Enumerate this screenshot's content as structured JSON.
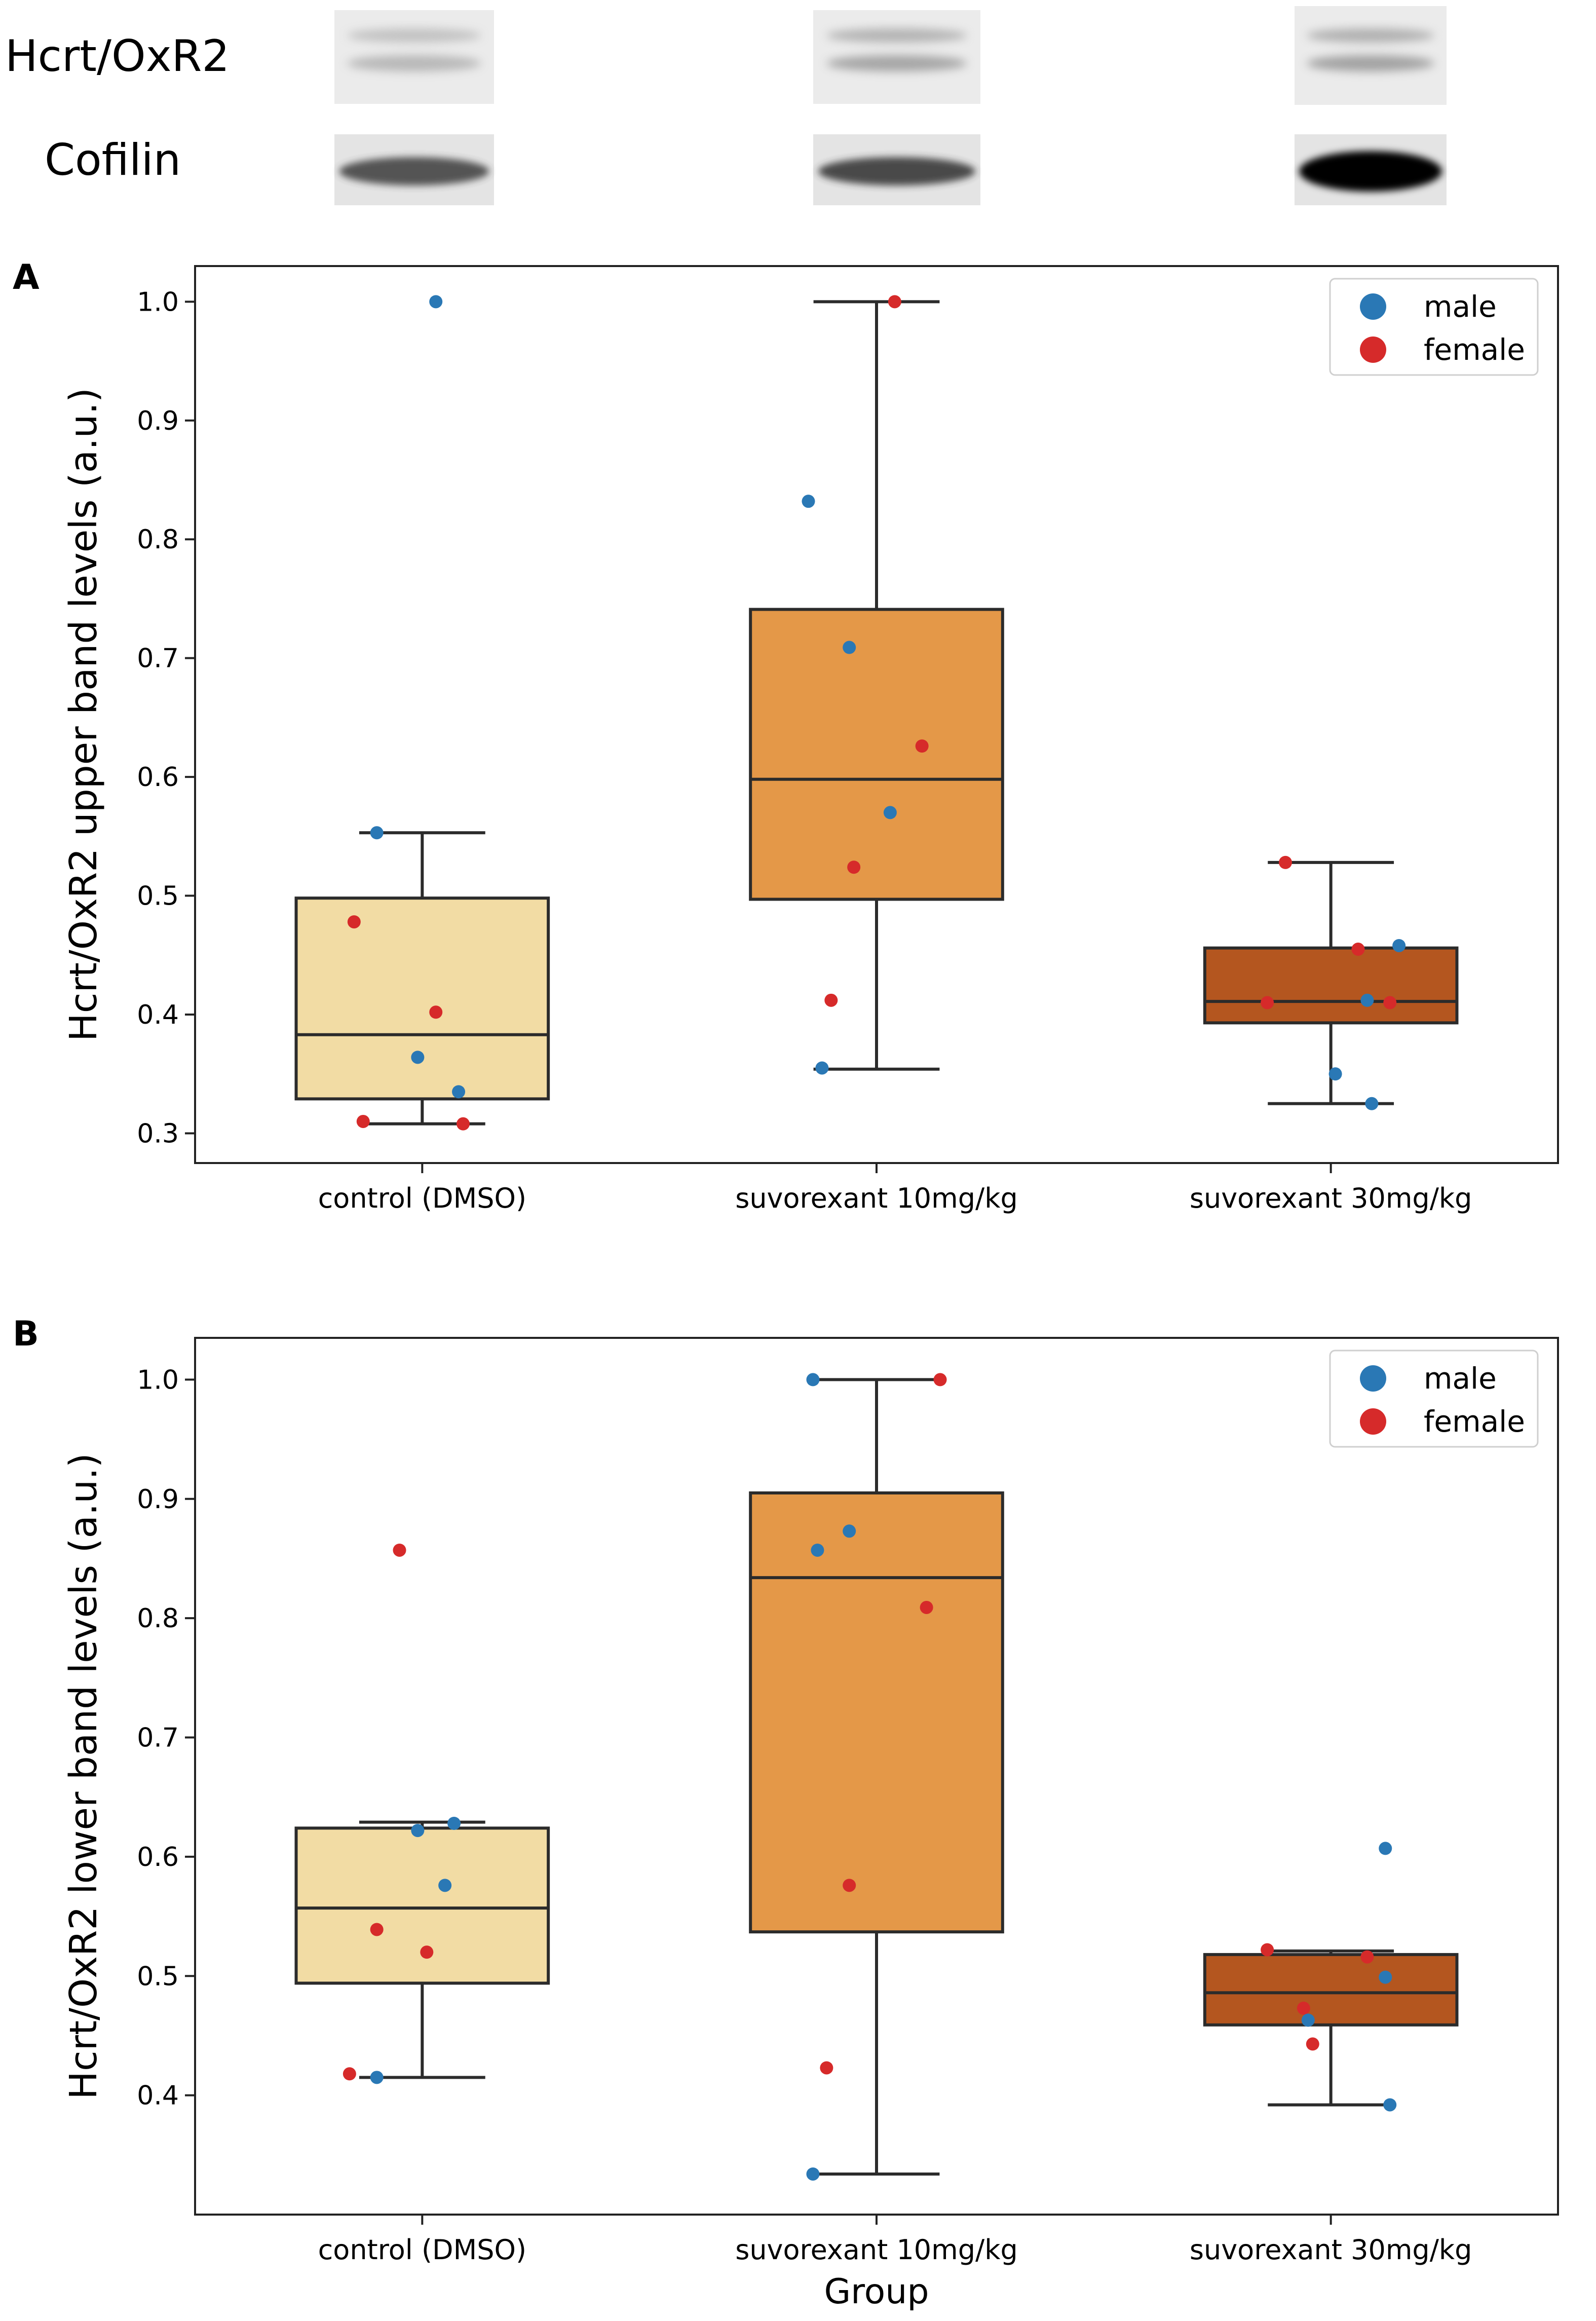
{
  "blot": {
    "labels": {
      "hcrt": "Hcrt/OxR2",
      "cofilin": "Cofilin"
    }
  },
  "colors": {
    "male": "#2a78b5",
    "female": "#d62a2a",
    "box_control": "#f2dca4",
    "box_suvo10": "#e49848",
    "box_suvo30": "#b4561f",
    "line": "#2b2b2b"
  },
  "chart_data": [
    {
      "panel": "A",
      "type": "box",
      "xlabel": "",
      "ylabel": "Hcrt/OxR2 upper band levels (a.u.)",
      "ylim": [
        0.275,
        1.03
      ],
      "yticks": [
        0.3,
        0.4,
        0.5,
        0.6,
        0.7,
        0.8,
        0.9,
        1.0
      ],
      "ytick_labels": [
        "0.3",
        "0.4",
        "0.5",
        "0.6",
        "0.7",
        "0.8",
        "0.9",
        "1.0"
      ],
      "grid": false,
      "legend": {
        "position": "top-right",
        "entries": [
          "male",
          "female"
        ]
      },
      "categories": [
        "control (DMSO)",
        "suvorexant 10mg/kg",
        "suvorexant 30mg/kg"
      ],
      "boxes": [
        {
          "q1": 0.329,
          "median": 0.383,
          "q3": 0.498,
          "whisker_low": 0.308,
          "whisker_high": 0.553
        },
        {
          "q1": 0.497,
          "median": 0.598,
          "q3": 0.741,
          "whisker_low": 0.354,
          "whisker_high": 1.0
        },
        {
          "q1": 0.393,
          "median": 0.411,
          "q3": 0.456,
          "whisker_low": 0.325,
          "whisker_high": 0.528
        }
      ],
      "points": [
        [
          {
            "dx": 0.03,
            "y": 1.0,
            "sex": "male"
          },
          {
            "dx": -0.1,
            "y": 0.553,
            "sex": "male"
          },
          {
            "dx": -0.15,
            "y": 0.478,
            "sex": "female"
          },
          {
            "dx": 0.03,
            "y": 0.402,
            "sex": "female"
          },
          {
            "dx": -0.01,
            "y": 0.364,
            "sex": "male"
          },
          {
            "dx": 0.08,
            "y": 0.335,
            "sex": "male"
          },
          {
            "dx": -0.13,
            "y": 0.31,
            "sex": "female"
          },
          {
            "dx": 0.09,
            "y": 0.308,
            "sex": "female"
          }
        ],
        [
          {
            "dx": 0.04,
            "y": 1.0,
            "sex": "female"
          },
          {
            "dx": -0.15,
            "y": 0.832,
            "sex": "male"
          },
          {
            "dx": -0.06,
            "y": 0.709,
            "sex": "male"
          },
          {
            "dx": 0.1,
            "y": 0.626,
            "sex": "female"
          },
          {
            "dx": 0.03,
            "y": 0.57,
            "sex": "male"
          },
          {
            "dx": -0.05,
            "y": 0.524,
            "sex": "female"
          },
          {
            "dx": -0.1,
            "y": 0.412,
            "sex": "female"
          },
          {
            "dx": -0.12,
            "y": 0.355,
            "sex": "male"
          }
        ],
        [
          {
            "dx": -0.1,
            "y": 0.528,
            "sex": "female"
          },
          {
            "dx": 0.15,
            "y": 0.458,
            "sex": "male"
          },
          {
            "dx": 0.06,
            "y": 0.455,
            "sex": "female"
          },
          {
            "dx": -0.14,
            "y": 0.41,
            "sex": "female"
          },
          {
            "dx": 0.08,
            "y": 0.412,
            "sex": "male"
          },
          {
            "dx": 0.13,
            "y": 0.41,
            "sex": "female"
          },
          {
            "dx": 0.01,
            "y": 0.35,
            "sex": "male"
          },
          {
            "dx": 0.09,
            "y": 0.325,
            "sex": "male"
          }
        ]
      ]
    },
    {
      "panel": "B",
      "type": "box",
      "xlabel": "Group",
      "ylabel": "Hcrt/OxR2 lower band levels (a.u.)",
      "ylim": [
        0.3,
        1.035
      ],
      "yticks": [
        0.4,
        0.5,
        0.6,
        0.7,
        0.8,
        0.9,
        1.0
      ],
      "ytick_labels": [
        "0.4",
        "0.5",
        "0.6",
        "0.7",
        "0.8",
        "0.9",
        "1.0"
      ],
      "grid": false,
      "legend": {
        "position": "top-right",
        "entries": [
          "male",
          "female"
        ]
      },
      "categories": [
        "control (DMSO)",
        "suvorexant 10mg/kg",
        "suvorexant 30mg/kg"
      ],
      "boxes": [
        {
          "q1": 0.494,
          "median": 0.557,
          "q3": 0.624,
          "whisker_low": 0.415,
          "whisker_high": 0.629
        },
        {
          "q1": 0.537,
          "median": 0.834,
          "q3": 0.905,
          "whisker_low": 0.334,
          "whisker_high": 1.0
        },
        {
          "q1": 0.459,
          "median": 0.486,
          "q3": 0.518,
          "whisker_low": 0.392,
          "whisker_high": 0.521
        }
      ],
      "points": [
        [
          {
            "dx": -0.05,
            "y": 0.857,
            "sex": "female"
          },
          {
            "dx": 0.07,
            "y": 0.628,
            "sex": "male"
          },
          {
            "dx": -0.01,
            "y": 0.622,
            "sex": "male"
          },
          {
            "dx": 0.05,
            "y": 0.576,
            "sex": "male"
          },
          {
            "dx": -0.1,
            "y": 0.539,
            "sex": "female"
          },
          {
            "dx": 0.01,
            "y": 0.52,
            "sex": "female"
          },
          {
            "dx": -0.16,
            "y": 0.418,
            "sex": "female"
          },
          {
            "dx": -0.1,
            "y": 0.415,
            "sex": "male"
          }
        ],
        [
          {
            "dx": -0.14,
            "y": 1.0,
            "sex": "male"
          },
          {
            "dx": 0.14,
            "y": 1.0,
            "sex": "female"
          },
          {
            "dx": -0.06,
            "y": 0.873,
            "sex": "male"
          },
          {
            "dx": -0.13,
            "y": 0.857,
            "sex": "male"
          },
          {
            "dx": 0.11,
            "y": 0.809,
            "sex": "female"
          },
          {
            "dx": -0.06,
            "y": 0.576,
            "sex": "female"
          },
          {
            "dx": -0.11,
            "y": 0.423,
            "sex": "female"
          },
          {
            "dx": -0.14,
            "y": 0.334,
            "sex": "male"
          }
        ],
        [
          {
            "dx": 0.12,
            "y": 0.607,
            "sex": "male"
          },
          {
            "dx": -0.14,
            "y": 0.522,
            "sex": "female"
          },
          {
            "dx": 0.08,
            "y": 0.516,
            "sex": "female"
          },
          {
            "dx": 0.12,
            "y": 0.499,
            "sex": "male"
          },
          {
            "dx": -0.06,
            "y": 0.473,
            "sex": "female"
          },
          {
            "dx": -0.05,
            "y": 0.463,
            "sex": "male"
          },
          {
            "dx": -0.04,
            "y": 0.443,
            "sex": "female"
          },
          {
            "dx": 0.13,
            "y": 0.392,
            "sex": "male"
          }
        ]
      ]
    }
  ]
}
